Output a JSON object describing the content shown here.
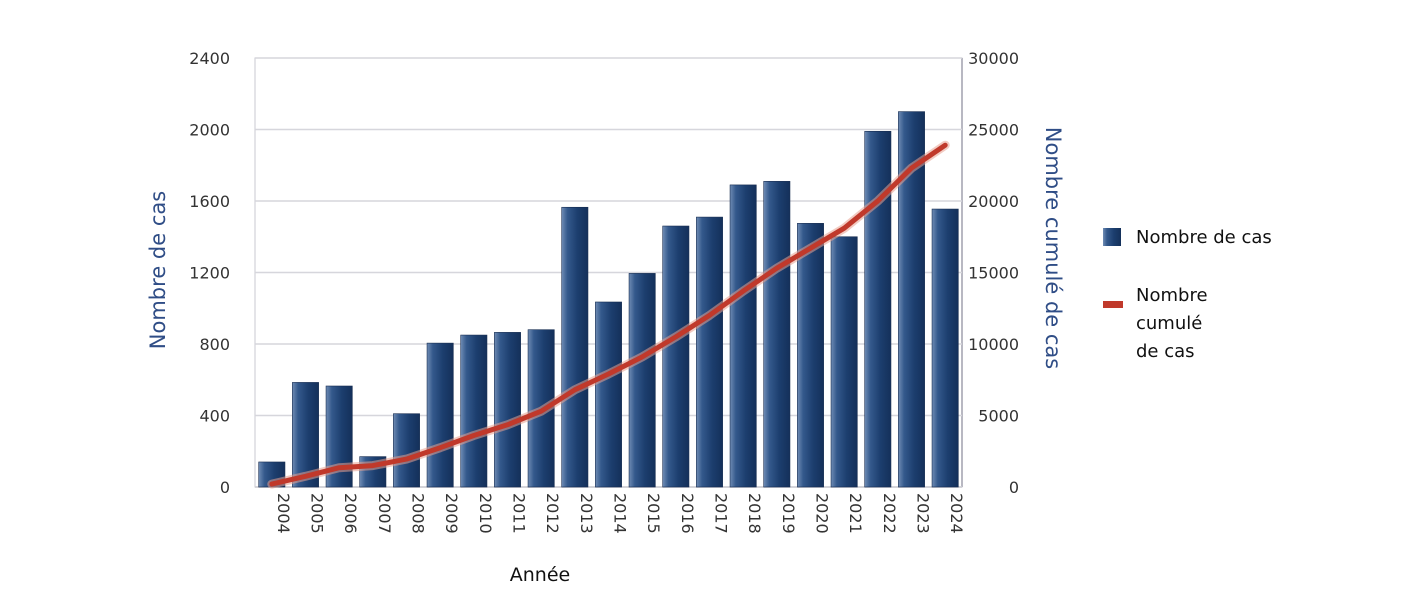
{
  "chart_data": {
    "type": "bar",
    "categories": [
      "2004",
      "2005",
      "2006",
      "2007",
      "2008",
      "2009",
      "2010",
      "2011",
      "2012",
      "2013",
      "2014",
      "2015",
      "2016",
      "2017",
      "2018",
      "2019",
      "2020",
      "2021",
      "2022",
      "2023",
      "2024"
    ],
    "series": [
      {
        "name": "Nombre de cas",
        "type": "bar",
        "axis": "left",
        "color": "#1f4577",
        "values": [
          140,
          585,
          565,
          170,
          410,
          805,
          850,
          865,
          880,
          1565,
          1035,
          1195,
          1460,
          1510,
          1690,
          1710,
          1475,
          1400,
          1990,
          2100,
          1555
        ]
      },
      {
        "name": "Nombre cumulé de cas",
        "type": "line",
        "axis": "right",
        "color": "#c0392b",
        "values": [
          200,
          750,
          1350,
          1500,
          1950,
          2750,
          3600,
          4350,
          5300,
          6800,
          7900,
          9100,
          10500,
          12000,
          13700,
          15300,
          16700,
          18100,
          20000,
          22300,
          23900
        ]
      }
    ],
    "xlabel": "Année",
    "ylabel": "Nombre de cas",
    "y2label": "Nombre cumulé de cas",
    "ylim": [
      0,
      2400
    ],
    "y2lim": [
      0,
      30000
    ],
    "yticks": [
      "0",
      "400",
      "800",
      "1200",
      "1600",
      "2000",
      "2400"
    ],
    "y2ticks": [
      "0",
      "5000",
      "10000",
      "15000",
      "20000",
      "25000",
      "30000"
    ],
    "grid": true,
    "legend": {
      "placement": "right",
      "entries": [
        {
          "label": "Nombre de cas",
          "color": "#1f4577"
        },
        {
          "label_lines": [
            "Nombre",
            "cumulé",
            "de cas"
          ],
          "color": "#c0392b"
        }
      ]
    }
  }
}
